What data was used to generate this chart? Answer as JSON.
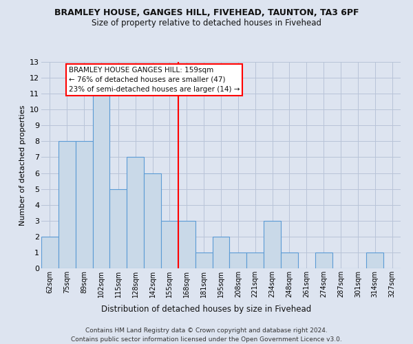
{
  "title1": "BRAMLEY HOUSE, GANGES HILL, FIVEHEAD, TAUNTON, TA3 6PF",
  "title2": "Size of property relative to detached houses in Fivehead",
  "xlabel": "Distribution of detached houses by size in Fivehead",
  "ylabel": "Number of detached properties",
  "categories": [
    "62sqm",
    "75sqm",
    "89sqm",
    "102sqm",
    "115sqm",
    "128sqm",
    "142sqm",
    "155sqm",
    "168sqm",
    "181sqm",
    "195sqm",
    "208sqm",
    "221sqm",
    "234sqm",
    "248sqm",
    "261sqm",
    "274sqm",
    "287sqm",
    "301sqm",
    "314sqm",
    "327sqm"
  ],
  "values": [
    2,
    8,
    8,
    11,
    5,
    7,
    6,
    3,
    3,
    1,
    2,
    1,
    1,
    3,
    1,
    0,
    1,
    0,
    0,
    1,
    0
  ],
  "bar_color": "#c9d9e8",
  "bar_edge_color": "#5b9bd5",
  "reference_line_index": 7,
  "annotation_line1": "BRAMLEY HOUSE GANGES HILL: 159sqm",
  "annotation_line2": "← 76% of detached houses are smaller (47)",
  "annotation_line3": "23% of semi-detached houses are larger (14) →",
  "ylim": [
    0,
    13
  ],
  "yticks": [
    0,
    1,
    2,
    3,
    4,
    5,
    6,
    7,
    8,
    9,
    10,
    11,
    12,
    13
  ],
  "footer1": "Contains HM Land Registry data © Crown copyright and database right 2024.",
  "footer2": "Contains public sector information licensed under the Open Government Licence v3.0.",
  "bg_color": "#dde4f0",
  "grid_color": "#b8c4d8"
}
